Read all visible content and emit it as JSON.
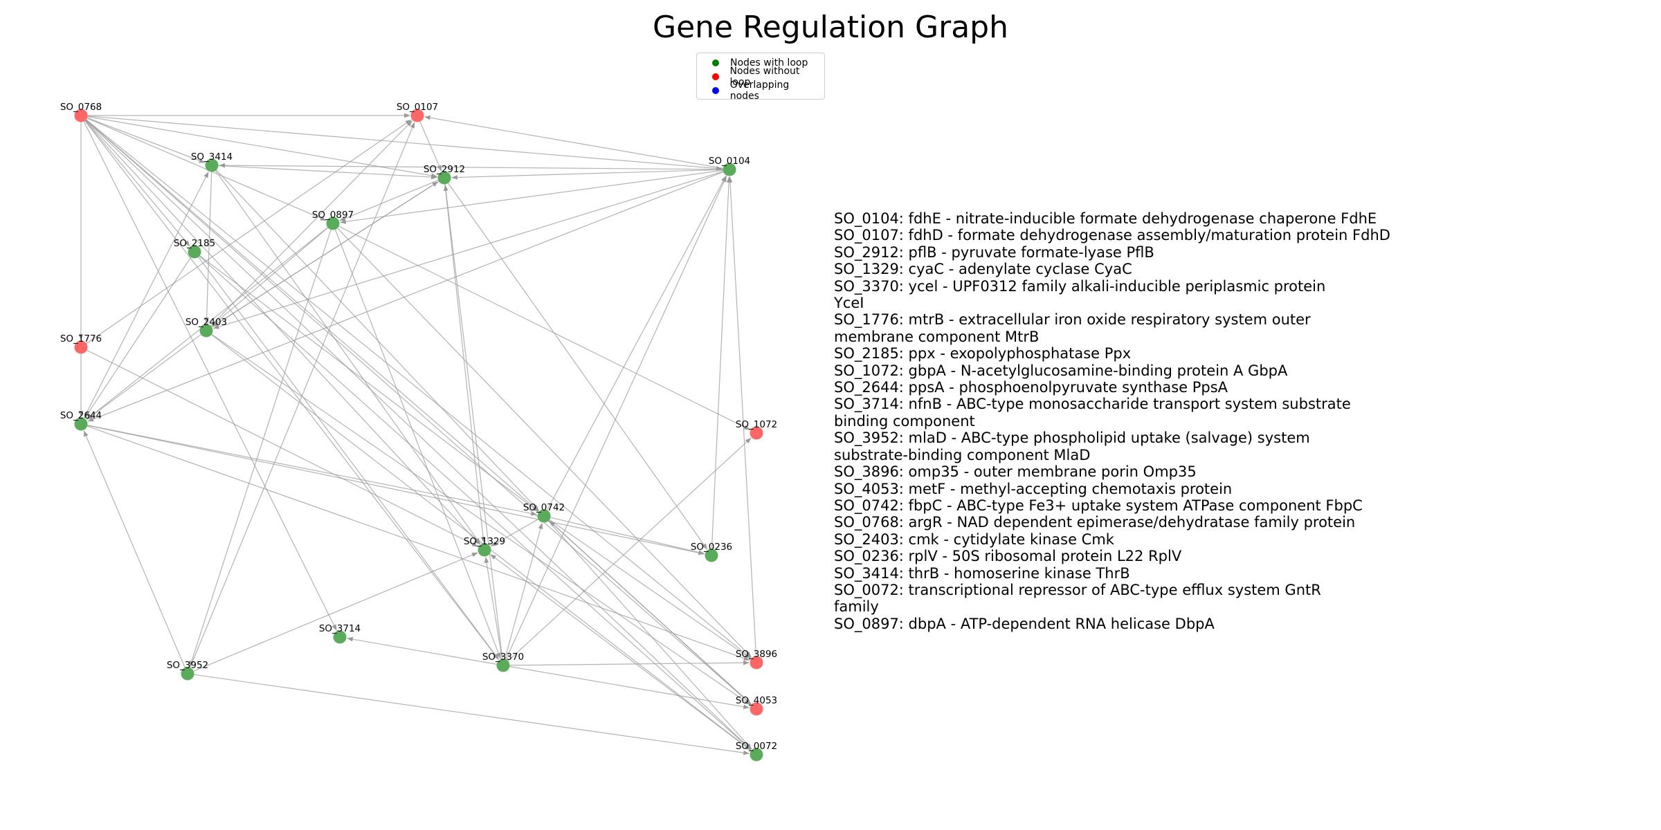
{
  "title": "Gene Regulation Graph",
  "legend": [
    {
      "label": "Nodes with loop",
      "color": "#008000"
    },
    {
      "label": "Nodes without loop",
      "color": "#ff0000"
    },
    {
      "label": "Overlapping nodes",
      "color": "#0000ff"
    }
  ],
  "colors": {
    "loop_node": "#5aac5a",
    "no_loop_node": "#ff6666",
    "edge": "#999999"
  },
  "nodes": [
    {
      "id": "SO_0768",
      "loop": false
    },
    {
      "id": "SO_0107",
      "loop": false
    },
    {
      "id": "SO_0104",
      "loop": true
    },
    {
      "id": "SO_3414",
      "loop": true
    },
    {
      "id": "SO_2912",
      "loop": true
    },
    {
      "id": "SO_0897",
      "loop": true
    },
    {
      "id": "SO_2185",
      "loop": true
    },
    {
      "id": "SO_2403",
      "loop": true
    },
    {
      "id": "SO_1776",
      "loop": false
    },
    {
      "id": "SO_2644",
      "loop": true
    },
    {
      "id": "SO_1072",
      "loop": false
    },
    {
      "id": "SO_0742",
      "loop": true
    },
    {
      "id": "SO_1329",
      "loop": true
    },
    {
      "id": "SO_0236",
      "loop": true
    },
    {
      "id": "SO_3714",
      "loop": true
    },
    {
      "id": "SO_3370",
      "loop": true
    },
    {
      "id": "SO_3896",
      "loop": false
    },
    {
      "id": "SO_3952",
      "loop": true
    },
    {
      "id": "SO_4053",
      "loop": false
    },
    {
      "id": "SO_0072",
      "loop": true
    }
  ],
  "edges": [
    [
      "SO_0768",
      "SO_0107"
    ],
    [
      "SO_0768",
      "SO_0104"
    ],
    [
      "SO_0768",
      "SO_3414"
    ],
    [
      "SO_0768",
      "SO_2912"
    ],
    [
      "SO_0768",
      "SO_0897"
    ],
    [
      "SO_0768",
      "SO_2185"
    ],
    [
      "SO_0768",
      "SO_1776"
    ],
    [
      "SO_0768",
      "SO_0742"
    ],
    [
      "SO_0768",
      "SO_1329"
    ],
    [
      "SO_0768",
      "SO_3370"
    ],
    [
      "SO_0768",
      "SO_3714"
    ],
    [
      "SO_0768",
      "SO_3896"
    ],
    [
      "SO_0768",
      "SO_4053"
    ],
    [
      "SO_0768",
      "SO_0072"
    ],
    [
      "SO_0104",
      "SO_0107"
    ],
    [
      "SO_0104",
      "SO_2912"
    ],
    [
      "SO_0104",
      "SO_3414"
    ],
    [
      "SO_0104",
      "SO_0897"
    ],
    [
      "SO_0104",
      "SO_2403"
    ],
    [
      "SO_0104",
      "SO_2644"
    ],
    [
      "SO_3414",
      "SO_2912"
    ],
    [
      "SO_3414",
      "SO_0742"
    ],
    [
      "SO_3414",
      "SO_1329"
    ],
    [
      "SO_3414",
      "SO_2403"
    ],
    [
      "SO_2912",
      "SO_1329"
    ],
    [
      "SO_2912",
      "SO_0236"
    ],
    [
      "SO_2912",
      "SO_2403"
    ],
    [
      "SO_2912",
      "SO_0897"
    ],
    [
      "SO_0897",
      "SO_2403"
    ],
    [
      "SO_0897",
      "SO_2644"
    ],
    [
      "SO_0897",
      "SO_3370"
    ],
    [
      "SO_0897",
      "SO_3952"
    ],
    [
      "SO_0897",
      "SO_1072"
    ],
    [
      "SO_0897",
      "SO_3896"
    ],
    [
      "SO_2185",
      "SO_0742"
    ],
    [
      "SO_2185",
      "SO_2644"
    ],
    [
      "SO_2185",
      "SO_3370"
    ],
    [
      "SO_2185",
      "SO_0072"
    ],
    [
      "SO_2403",
      "SO_0107"
    ],
    [
      "SO_2403",
      "SO_2912"
    ],
    [
      "SO_2403",
      "SO_2644"
    ],
    [
      "SO_2403",
      "SO_4053"
    ],
    [
      "SO_2403",
      "SO_0072"
    ],
    [
      "SO_1776",
      "SO_0107"
    ],
    [
      "SO_1776",
      "SO_2644"
    ],
    [
      "SO_1776",
      "SO_1329"
    ],
    [
      "SO_2644",
      "SO_3414"
    ],
    [
      "SO_2644",
      "SO_0742"
    ],
    [
      "SO_2644",
      "SO_3896"
    ],
    [
      "SO_2644",
      "SO_0236"
    ],
    [
      "SO_0742",
      "SO_0104"
    ],
    [
      "SO_0742",
      "SO_1329"
    ],
    [
      "SO_0742",
      "SO_3896"
    ],
    [
      "SO_0742",
      "SO_4053"
    ],
    [
      "SO_0742",
      "SO_0072"
    ],
    [
      "SO_0742",
      "SO_0236"
    ],
    [
      "SO_0236",
      "SO_0104"
    ],
    [
      "SO_3370",
      "SO_3714"
    ],
    [
      "SO_3370",
      "SO_0104"
    ],
    [
      "SO_3370",
      "SO_1329"
    ],
    [
      "SO_3370",
      "SO_2912"
    ],
    [
      "SO_3370",
      "SO_3896"
    ],
    [
      "SO_3370",
      "SO_4053"
    ],
    [
      "SO_3370",
      "SO_1072"
    ],
    [
      "SO_3370",
      "SO_0742"
    ],
    [
      "SO_3952",
      "SO_2644"
    ],
    [
      "SO_3952",
      "SO_0107"
    ],
    [
      "SO_3952",
      "SO_1329"
    ],
    [
      "SO_3952",
      "SO_0072"
    ],
    [
      "SO_3896",
      "SO_0104"
    ],
    [
      "SO_4053",
      "SO_0742"
    ],
    [
      "SO_0072",
      "SO_1329"
    ],
    [
      "SO_0107",
      "SO_2912"
    ]
  ],
  "descriptions": [
    "SO_0104: fdhE - nitrate-inducible formate dehydrogenase chaperone FdhE",
    "SO_0107: fdhD - formate dehydrogenase assembly/maturation protein FdhD",
    "SO_2912: pflB - pyruvate formate-lyase PflB",
    "SO_1329: cyaC - adenylate cyclase CyaC",
    "SO_3370: ycel - UPF0312 family alkali-inducible periplasmic protein",
    "YceI",
    "SO_1776: mtrB - extracellular iron oxide respiratory system outer",
    "membrane component MtrB",
    "SO_2185: ppx - exopolyphosphatase Ppx",
    "SO_1072: gbpA - N-acetylglucosamine-binding protein A GbpA",
    "SO_2644: ppsA - phosphoenolpyruvate synthase PpsA",
    "SO_3714: nfnB - ABC-type monosaccharide transport system substrate",
    "binding component",
    "SO_3952: mlaD - ABC-type phospholipid uptake (salvage) system",
    "substrate-binding component MlaD",
    "SO_3896: omp35 - outer membrane porin Omp35",
    "SO_4053: metF - methyl-accepting chemotaxis protein",
    "SO_0742: fbpC - ABC-type Fe3+ uptake system ATPase component FbpC",
    "SO_0768: argR - NAD dependent epimerase/dehydratase family protein",
    "SO_2403: cmk - cytidylate kinase Cmk",
    "SO_0236: rplV - 50S ribosomal protein L22 RplV",
    "SO_3414: thrB - homoserine kinase ThrB",
    "SO_0072: transcriptional repressor of ABC-type efflux system GntR",
    "family",
    "SO_0897: dbpA - ATP-dependent RNA helicase DbpA"
  ]
}
